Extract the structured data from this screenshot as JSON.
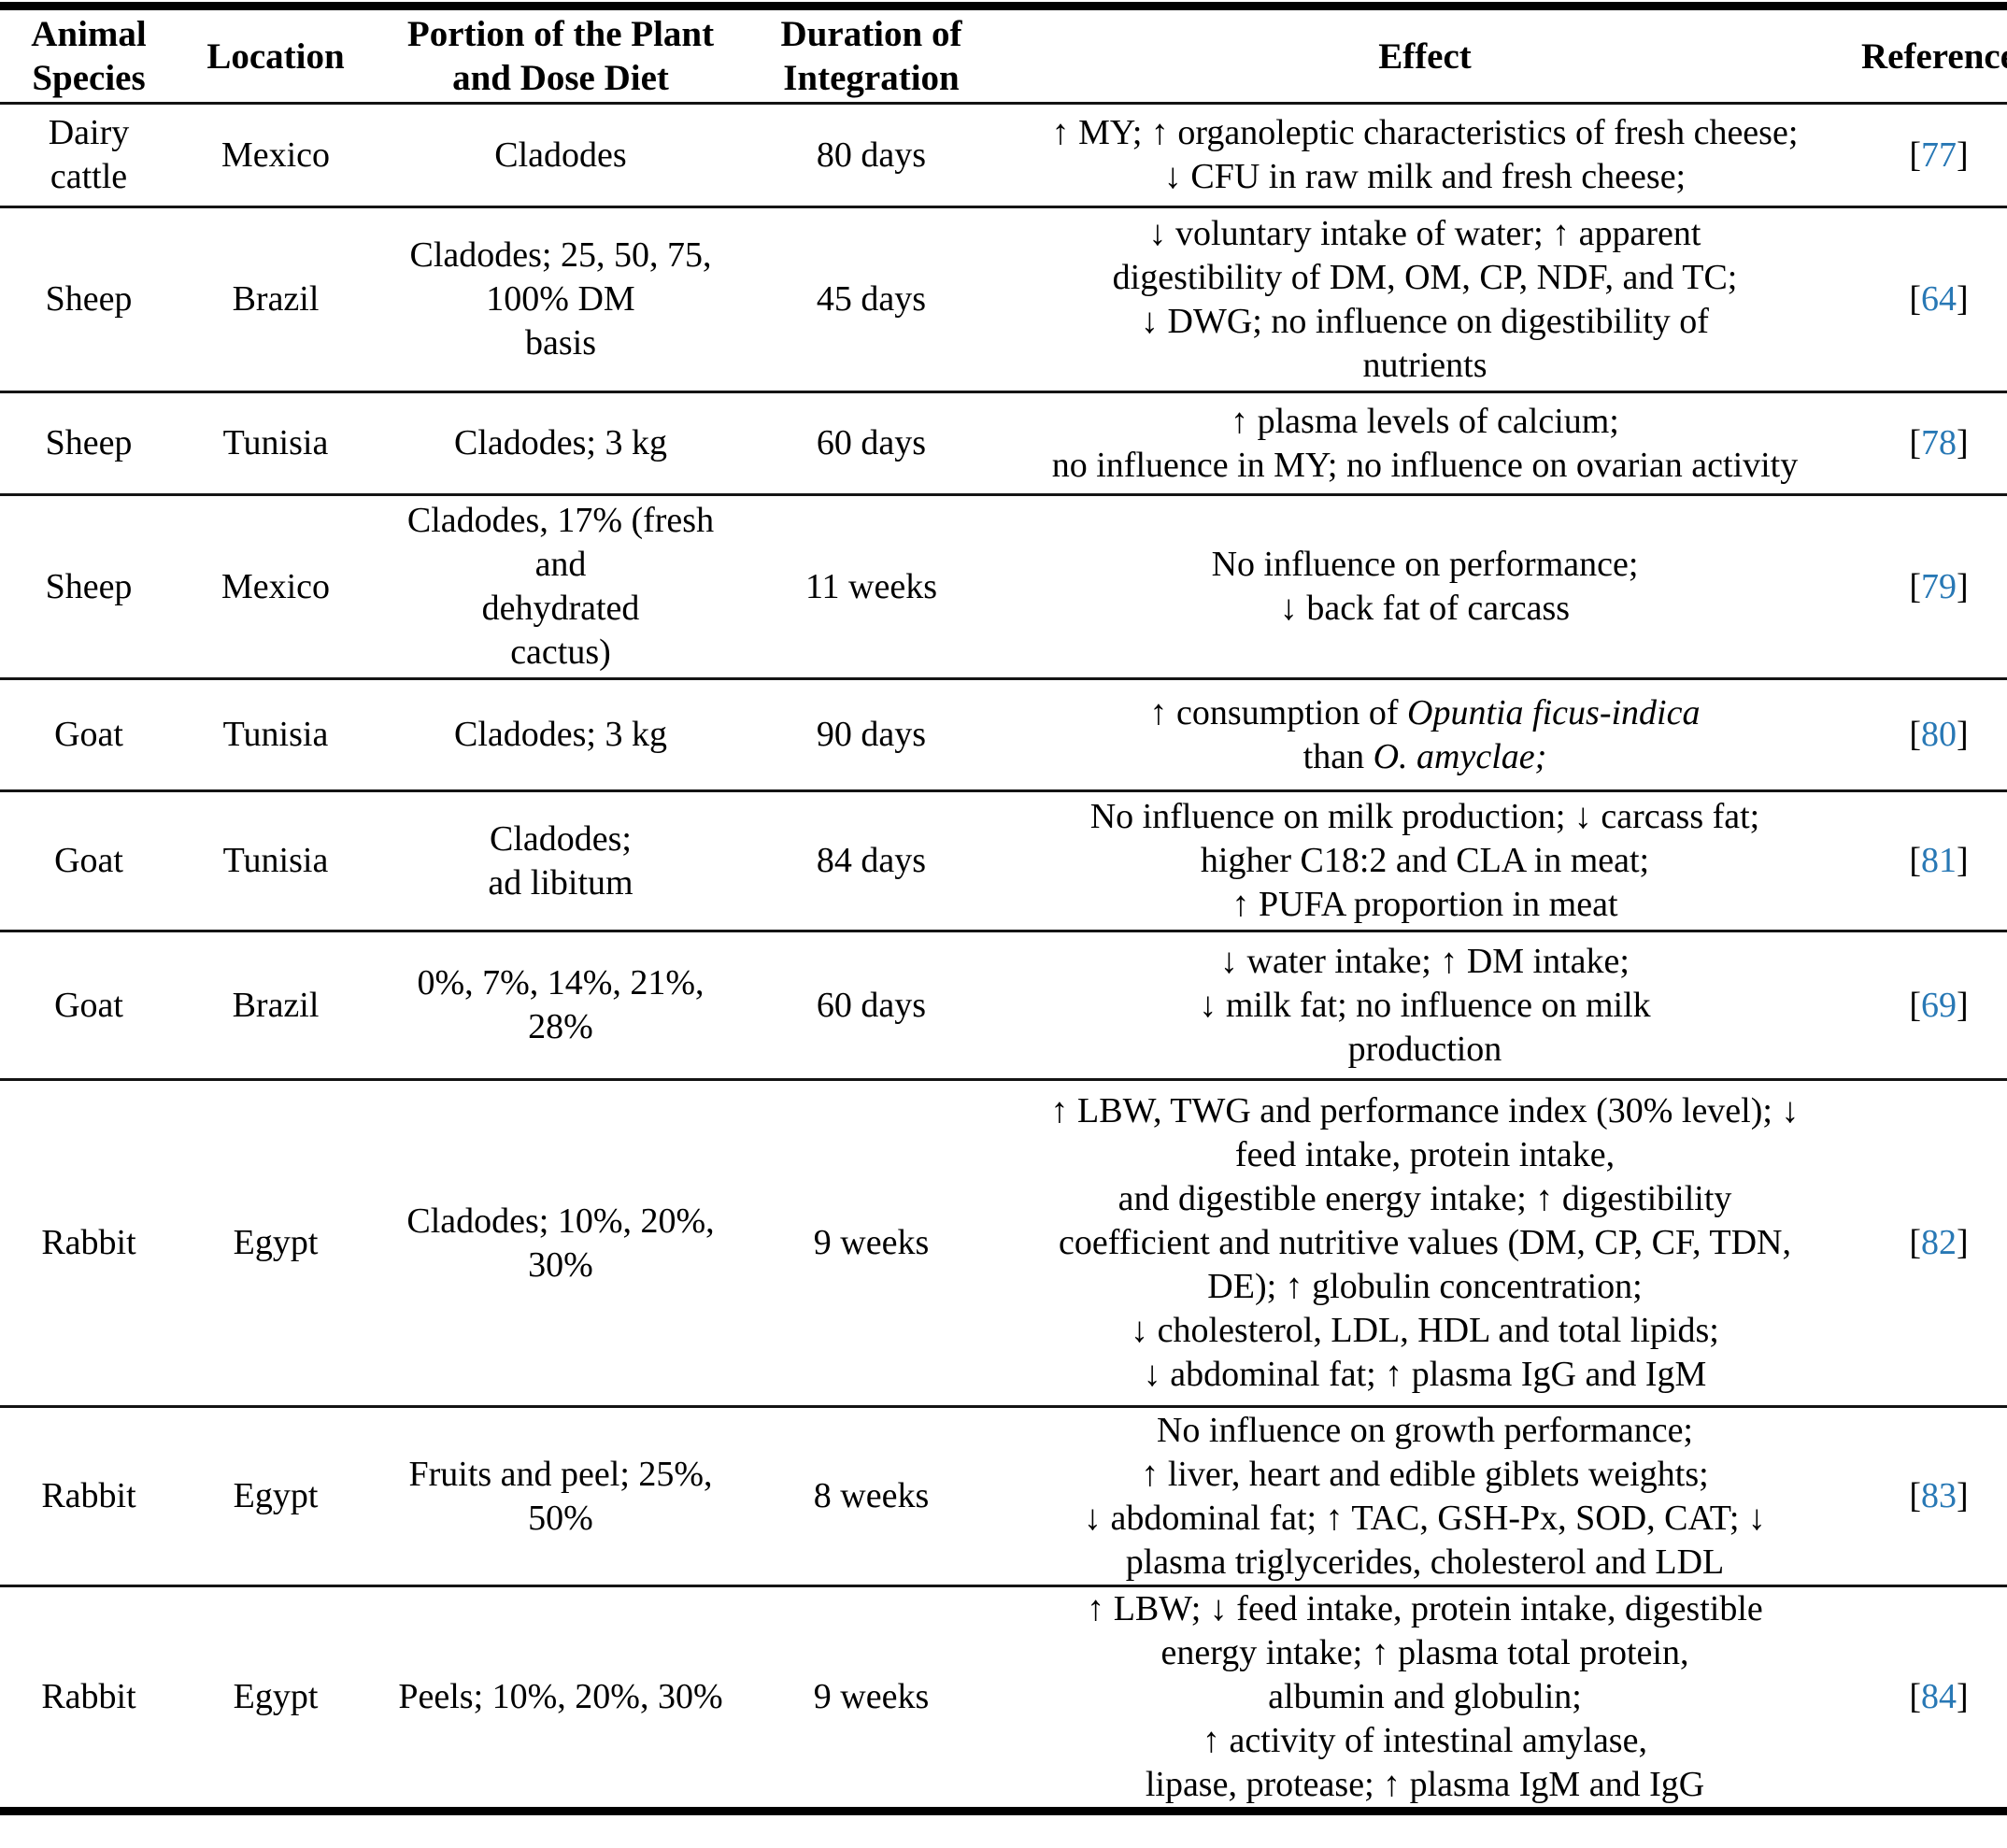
{
  "colors": {
    "reference_link_blue": "#2878b5",
    "text": "#000000",
    "rule_lines": "#141414"
  },
  "table": {
    "columns": [
      {
        "lines": [
          "Animal",
          "Species"
        ]
      },
      {
        "lines": [
          "Location"
        ]
      },
      {
        "lines": [
          "Portion of the Plant",
          "and Dose Diet"
        ]
      },
      {
        "lines": [
          "Duration of",
          "Integration"
        ]
      },
      {
        "lines": [
          "Effect"
        ]
      },
      {
        "lines": [
          "Reference"
        ]
      }
    ],
    "rows": [
      {
        "species_lines": [
          "Dairy",
          "cattle"
        ],
        "location": "Mexico",
        "portion_lines": [
          "Cladodes"
        ],
        "duration": "80 days",
        "effect_lines": [
          "↑ MY; ↑ organoleptic characteristics of fresh cheese;",
          "↓ CFU in raw milk and fresh cheese;"
        ],
        "ref": {
          "open": "[",
          "num": "77",
          "close": "]"
        }
      },
      {
        "species_lines": [
          "Sheep"
        ],
        "location": "Brazil",
        "portion_lines": [
          "Cladodes; 25, 50, 75,",
          "100% DM",
          "basis"
        ],
        "duration": "45 days",
        "effect_lines": [
          "↓ voluntary intake of water; ↑ apparent",
          "digestibility of DM, OM, CP, NDF, and TC;",
          "↓ DWG; no influence on digestibility of",
          "nutrients"
        ],
        "ref": {
          "open": "[",
          "num": "64",
          "close": "]"
        }
      },
      {
        "species_lines": [
          "Sheep"
        ],
        "location": "Tunisia",
        "portion_lines": [
          "Cladodes; 3 kg"
        ],
        "duration": "60 days",
        "effect_lines": [
          "↑ plasma levels of calcium;",
          "no influence in MY; no influence on ovarian activity"
        ],
        "ref": {
          "open": "[",
          "num": "78",
          "close": "]"
        }
      },
      {
        "species_lines": [
          "Sheep"
        ],
        "location": "Mexico",
        "portion_lines": [
          "Cladodes, 17% (fresh",
          "and",
          "dehydrated",
          "cactus)"
        ],
        "duration": "11 weeks",
        "effect_lines": [
          "No influence on performance;",
          "↓ back fat of carcass"
        ],
        "ref": {
          "open": "[",
          "num": "79",
          "close": "]"
        }
      },
      {
        "species_lines": [
          "Goat"
        ],
        "location": "Tunisia",
        "portion_lines": [
          "Cladodes; 3 kg"
        ],
        "duration": "90 days",
        "effect_lines_rich": [
          {
            "pre": "↑ consumption of ",
            "italic": "Opuntia ficus-indica"
          },
          {
            "pre": "than ",
            "italic": "O. amyclae;"
          }
        ],
        "ref": {
          "open": "[",
          "num": "80",
          "close": "]"
        }
      },
      {
        "species_lines": [
          "Goat"
        ],
        "location": "Tunisia",
        "portion_lines": [
          "Cladodes;",
          "ad libitum"
        ],
        "duration": "84 days",
        "effect_lines": [
          "No influence on milk production; ↓ carcass fat;",
          "higher C18:2 and CLA in meat;",
          "↑ PUFA proportion in meat"
        ],
        "ref": {
          "open": "[",
          "num": "81",
          "close": "]"
        }
      },
      {
        "species_lines": [
          "Goat"
        ],
        "location": "Brazil",
        "portion_lines": [
          "0%, 7%, 14%, 21%,",
          "28%"
        ],
        "duration": "60 days",
        "effect_lines": [
          "↓ water intake; ↑ DM intake;",
          "↓ milk fat; no influence on milk",
          "production"
        ],
        "ref": {
          "open": "[",
          "num": "69",
          "close": "]"
        }
      },
      {
        "species_lines": [
          "Rabbit"
        ],
        "location": "Egypt",
        "portion_lines": [
          "Cladodes; 10%, 20%,",
          "30%"
        ],
        "duration": "9 weeks",
        "effect_lines": [
          "↑ LBW, TWG and performance index (30% level); ↓",
          "feed intake, protein intake,",
          "and digestible energy intake; ↑ digestibility",
          "coefficient and nutritive values (DM, CP, CF, TDN,",
          "DE); ↑ globulin concentration;",
          "↓ cholesterol, LDL, HDL and total lipids;",
          "↓ abdominal fat; ↑ plasma IgG and IgM"
        ],
        "ref": {
          "open": "[",
          "num": "82",
          "close": "]"
        }
      },
      {
        "species_lines": [
          "Rabbit"
        ],
        "location": "Egypt",
        "portion_lines": [
          "Fruits and peel; 25%,",
          "50%"
        ],
        "duration": "8 weeks",
        "effect_lines": [
          "No influence on growth performance;",
          "↑ liver, heart and edible giblets weights;",
          "↓ abdominal fat; ↑ TAC, GSH-Px, SOD, CAT; ↓",
          "plasma triglycerides, cholesterol and LDL"
        ],
        "ref": {
          "open": "[",
          "num": "83",
          "close": "]"
        }
      },
      {
        "species_lines": [
          "Rabbit"
        ],
        "location": "Egypt",
        "portion_lines": [
          "Peels; 10%, 20%, 30%"
        ],
        "duration": "9 weeks",
        "effect_lines": [
          "↑ LBW; ↓ feed intake, protein intake, digestible",
          "energy intake; ↑ plasma total protein,",
          "albumin and globulin;",
          "↑ activity of intestinal amylase,",
          "lipase, protease; ↑ plasma IgM and IgG"
        ],
        "ref": {
          "open": "[",
          "num": "84",
          "close": "]"
        }
      }
    ]
  }
}
